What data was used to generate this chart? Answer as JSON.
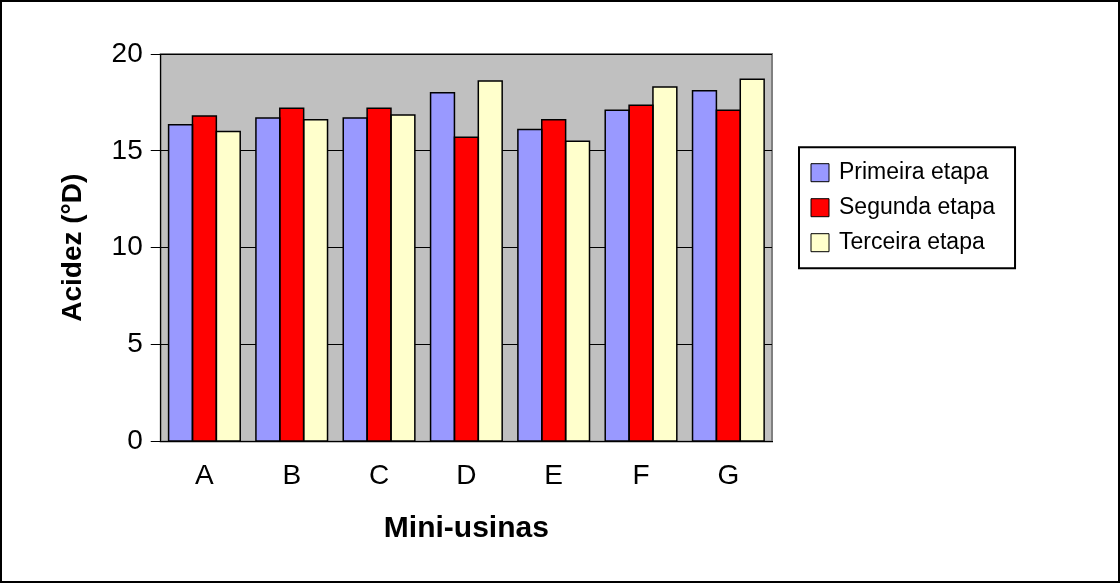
{
  "chart_data": {
    "type": "bar",
    "xlabel": "Mini-usinas",
    "ylabel": "Acidez (°D)",
    "categories": [
      "A",
      "B",
      "C",
      "D",
      "E",
      "F",
      "G"
    ],
    "series": [
      {
        "name": "Primeira etapa",
        "color": "#9999ff",
        "values": [
          16.35,
          16.7,
          16.7,
          18.0,
          16.1,
          17.1,
          18.1
        ]
      },
      {
        "name": "Segunda etapa",
        "color": "#ff0000",
        "values": [
          16.8,
          17.2,
          17.2,
          15.7,
          16.6,
          17.35,
          17.1
        ]
      },
      {
        "name": "Terceira etapa",
        "color": "#ffffcc",
        "values": [
          16.0,
          16.6,
          16.85,
          18.6,
          15.5,
          18.3,
          18.7
        ]
      }
    ],
    "ylim": [
      0,
      20
    ],
    "yticks": [
      0,
      5,
      10,
      15,
      20
    ],
    "grid": "y",
    "legend": "right"
  }
}
